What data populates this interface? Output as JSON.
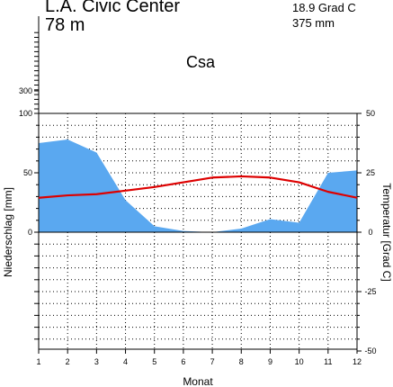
{
  "header": {
    "station": "L.A. Civic Center",
    "elevation": "78 m",
    "mean_temperature": "18.9 Grad C",
    "annual_precipitation": "375 mm",
    "climate_class": "Csa"
  },
  "chart_data": {
    "type": "area",
    "title": "L.A. Civic Center",
    "xlabel": "Monat",
    "ylabel_left": "Niederschlag [mm]",
    "ylabel_right": "Temperatur [Grad C]",
    "x": [
      1,
      2,
      3,
      4,
      5,
      6,
      7,
      8,
      9,
      10,
      11,
      12
    ],
    "x_ticks": [
      "1",
      "2",
      "3",
      "4",
      "5",
      "6",
      "7",
      "8",
      "9",
      "10",
      "11",
      "12"
    ],
    "left_ticks": [
      "300",
      "100",
      "50",
      "0"
    ],
    "right_ticks": [
      "50",
      "25",
      "0",
      "-25",
      "-50"
    ],
    "precip_ylim": [
      0,
      100
    ],
    "temp_ylim": [
      -50,
      50
    ],
    "grid": true,
    "series": [
      {
        "kind": "precipitation",
        "unit": "mm",
        "color": "#5aa8f0",
        "values": [
          75,
          78,
          67,
          27,
          5,
          1,
          0,
          3,
          11,
          8,
          50,
          52
        ]
      },
      {
        "kind": "temperature",
        "unit": "Grad C",
        "color": "#dd0000",
        "values": [
          14.5,
          15.5,
          16,
          17.5,
          19,
          21,
          23,
          23.5,
          23,
          21,
          17,
          14.5
        ]
      }
    ]
  }
}
